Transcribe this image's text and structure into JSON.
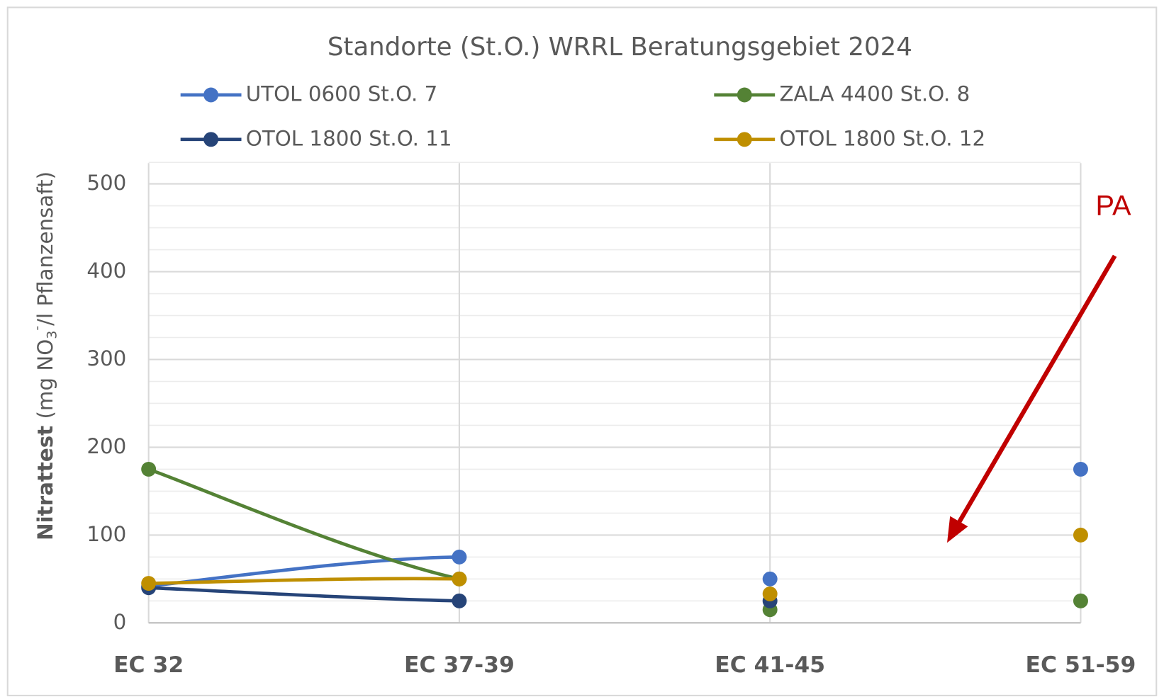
{
  "chart_data": {
    "type": "line",
    "title": "Standorte (St.O.) WRRL Beratungsgebiet 2024",
    "ylabel": [
      "Nitrattest",
      "(mg NO",
      "3",
      "-",
      "/l Pflanzensaft)"
    ],
    "categories": [
      "EC 32",
      "EC 37-39",
      "EC 41-45",
      "EC 51-59"
    ],
    "series": [
      {
        "name": "UTOL 0600 St.O. 7",
        "color": "#4472c4",
        "values": [
          42,
          75,
          50,
          175
        ]
      },
      {
        "name": "ZALA 4400 St.O. 8",
        "color": "#548235",
        "values": [
          175,
          50,
          15,
          25
        ]
      },
      {
        "name": "OTOL 1800 St.O. 11",
        "color": "#264478",
        "values": [
          40,
          25,
          25,
          null
        ]
      },
      {
        "name": "OTOL 1800 St.O. 12",
        "color": "#bf8f00",
        "values": [
          45,
          50,
          33,
          100
        ]
      }
    ],
    "ylim": [
      0,
      500
    ],
    "yticks": [
      0,
      100,
      200,
      300,
      400,
      500
    ],
    "grid": true,
    "smooth": true,
    "annotation": {
      "text": "PA",
      "color": "#c00000"
    }
  }
}
